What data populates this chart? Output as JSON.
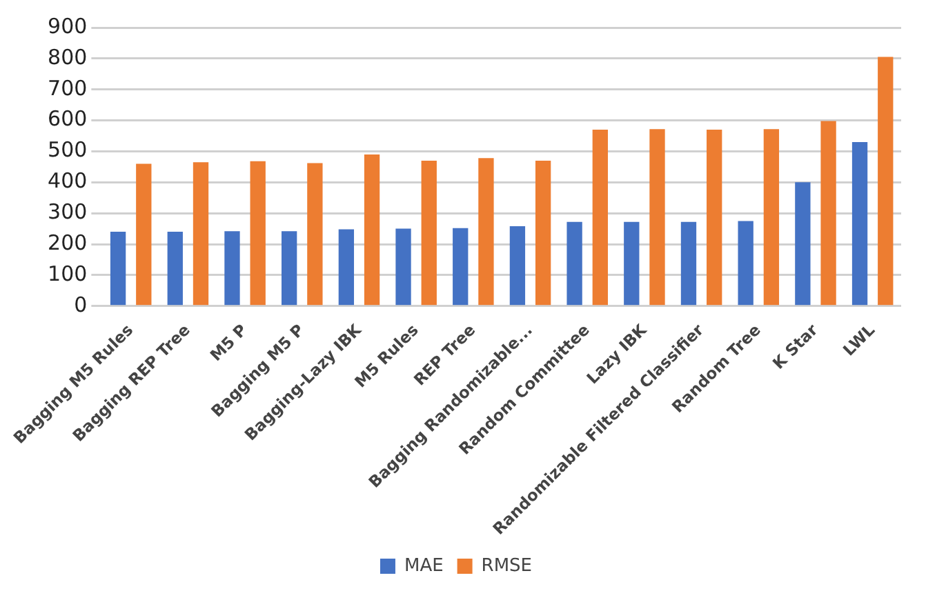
{
  "chart_data": {
    "type": "bar",
    "categories": [
      "Bagging M5 Rules",
      "Bagging REP Tree",
      "M5 P",
      "Bagging M5 P",
      "Bagging-Lazy IBK",
      "M5 Rules",
      "REP Tree",
      "Bagging Randomizable...",
      "Random Committee",
      "Lazy IBK",
      "Randomizable Filtered Classifier",
      "Random Tree",
      "K Star",
      "LWL"
    ],
    "series": [
      {
        "name": "MAE",
        "color": "#4472c4",
        "values": [
          240,
          240,
          242,
          242,
          248,
          250,
          252,
          258,
          272,
          272,
          272,
          275,
          400,
          530
        ]
      },
      {
        "name": "RMSE",
        "color": "#ed7d31",
        "values": [
          460,
          465,
          468,
          462,
          490,
          470,
          478,
          470,
          570,
          572,
          570,
          572,
          598,
          805
        ]
      }
    ],
    "ylim": [
      0,
      900
    ],
    "yticks": [
      0,
      100,
      200,
      300,
      400,
      500,
      600,
      700,
      800,
      900
    ],
    "grid": "y",
    "legend": "bottom"
  }
}
